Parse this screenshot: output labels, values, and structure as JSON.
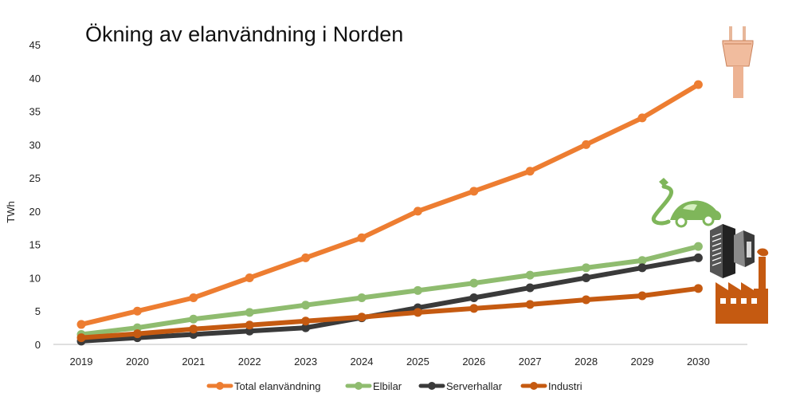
{
  "chart_data": {
    "type": "line",
    "title": "Ökning av elanvändning i Norden",
    "xlabel": "",
    "ylabel": "TWh",
    "ylim": [
      0,
      45
    ],
    "yticks": [
      0,
      5,
      10,
      15,
      20,
      25,
      30,
      35,
      40,
      45
    ],
    "grid": false,
    "legend_position": "bottom",
    "categories": [
      "2019",
      "2020",
      "2021",
      "2022",
      "2023",
      "2024",
      "2025",
      "2026",
      "2027",
      "2028",
      "2029",
      "2030"
    ],
    "series": [
      {
        "name": "Total elanvändning",
        "color": "#ED7D31",
        "values": [
          3,
          5,
          7,
          10,
          13,
          16,
          20,
          23,
          26,
          30,
          34,
          39
        ]
      },
      {
        "name": "Elbilar",
        "color": "#8FBC6F",
        "values": [
          1.5,
          2.5,
          3.8,
          4.8,
          5.9,
          7,
          8.1,
          9.2,
          10.4,
          11.5,
          12.6,
          14.7
        ]
      },
      {
        "name": "Serverhallar",
        "color": "#3A3A3A",
        "values": [
          0.5,
          1,
          1.5,
          2,
          2.5,
          4,
          5.5,
          7,
          8.5,
          10,
          11.5,
          13
        ]
      },
      {
        "name": "Industri",
        "color": "#C55A11",
        "values": [
          1,
          1.6,
          2.3,
          2.9,
          3.5,
          4.1,
          4.8,
          5.4,
          6,
          6.7,
          7.3,
          8.4
        ]
      }
    ],
    "icons": [
      "electric-plug-icon",
      "electric-car-icon",
      "server-racks-icon",
      "factory-icon"
    ]
  }
}
